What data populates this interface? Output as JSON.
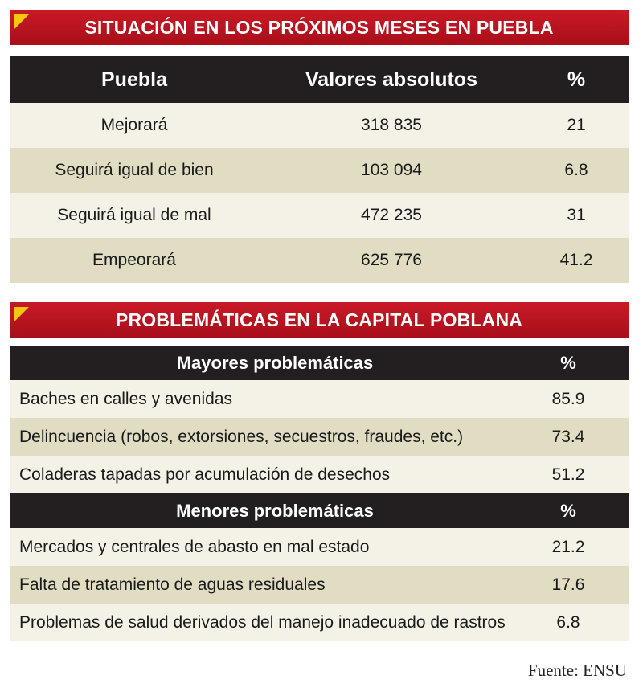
{
  "section1": {
    "title": "SITUACIÓN EN LOS PRÓXIMOS MESES EN PUEBLA",
    "headers": [
      "Puebla",
      "Valores absolutos",
      "%"
    ],
    "rows": [
      [
        "Mejorará",
        "318 835",
        "21"
      ],
      [
        "Seguirá igual de bien",
        "103 094",
        "6.8"
      ],
      [
        "Seguirá igual de mal",
        "472 235",
        "31"
      ],
      [
        "Empeorará",
        "625 776",
        "41.2"
      ]
    ]
  },
  "section2": {
    "title": "PROBLEMÁTICAS EN LA CAPITAL POBLANA",
    "major": {
      "header": [
        "Mayores problemáticas",
        "%"
      ],
      "rows": [
        [
          "Baches en calles y avenidas",
          "85.9"
        ],
        [
          "Delincuencia (robos, extorsiones, secuestros, fraudes, etc.)",
          "73.4"
        ],
        [
          "Coladeras tapadas por acumulación de desechos",
          "51.2"
        ]
      ]
    },
    "minor": {
      "header": [
        "Menores problemáticas",
        "%"
      ],
      "rows": [
        [
          "Mercados y centrales de abasto en mal estado",
          "21.2"
        ],
        [
          "Falta de tratamiento de aguas residuales",
          "17.6"
        ],
        [
          "Problemas de salud derivados del manejo inadecuado de rastros",
          "6.8"
        ]
      ]
    }
  },
  "source": "Fuente: ENSU",
  "colors": {
    "banner": "#b8141f",
    "header": "#231f20",
    "row_light": "#f4f1e6",
    "row_dark": "#e1ddc3",
    "accent": "#f2c811"
  }
}
